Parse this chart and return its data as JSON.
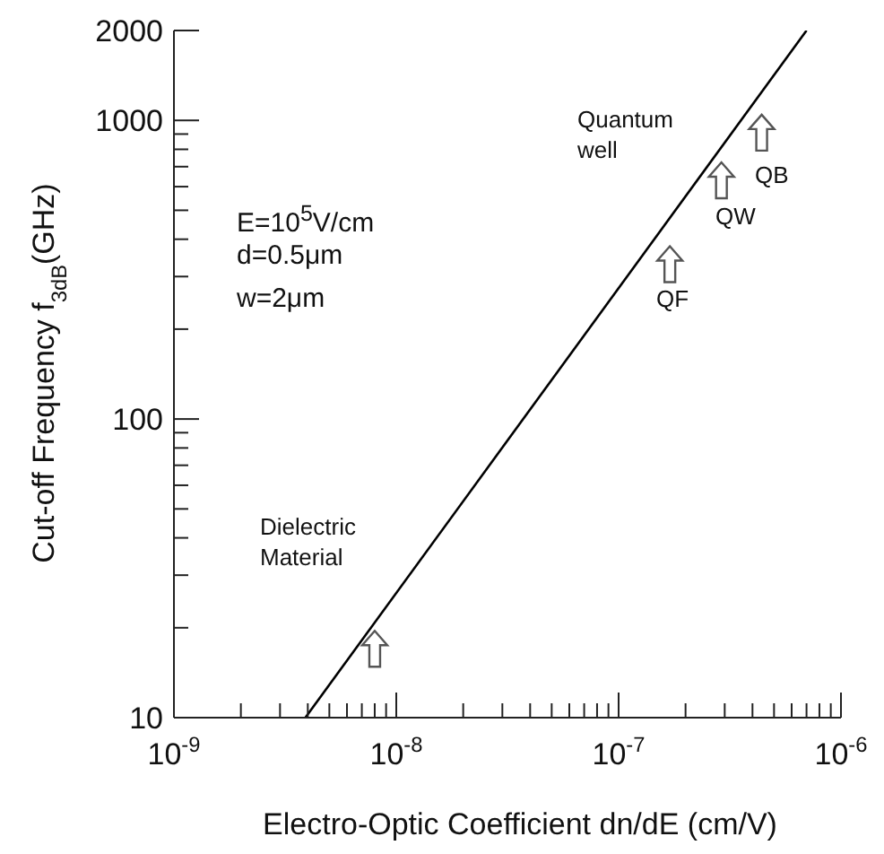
{
  "chart_data": {
    "type": "line",
    "xlabel": "Electro-Optic Coefficient   dn/dE (cm/V)",
    "ylabel": "Cut-off Frequency  f$_{3dB}$(GHz)",
    "log": "xy",
    "grid": false,
    "legend": false,
    "xlim": [
      1e-09,
      1e-06
    ],
    "xticks": [
      {
        "value": 1e-09,
        "label": "10$^{-9}$"
      },
      {
        "value": 2e-09,
        "label": null
      },
      {
        "value": 3e-09,
        "label": null
      },
      {
        "value": 4e-09,
        "label": null
      },
      {
        "value": 5e-09,
        "label": null
      },
      {
        "value": 6e-09,
        "label": null
      },
      {
        "value": 7e-09,
        "label": null
      },
      {
        "value": 8e-09,
        "label": null
      },
      {
        "value": 9e-09,
        "label": null
      },
      {
        "value": 1e-08,
        "label": "10$^{-8}$"
      },
      {
        "value": 2e-08,
        "label": null
      },
      {
        "value": 3e-08,
        "label": null
      },
      {
        "value": 4e-08,
        "label": null
      },
      {
        "value": 5e-08,
        "label": null
      },
      {
        "value": 6e-08,
        "label": null
      },
      {
        "value": 7e-08,
        "label": null
      },
      {
        "value": 8e-08,
        "label": null
      },
      {
        "value": 9e-08,
        "label": null
      },
      {
        "value": 1e-07,
        "label": "10$^{-7}$"
      },
      {
        "value": 2e-07,
        "label": null
      },
      {
        "value": 3e-07,
        "label": null
      },
      {
        "value": 4e-07,
        "label": null
      },
      {
        "value": 5e-07,
        "label": null
      },
      {
        "value": 6e-07,
        "label": null
      },
      {
        "value": 7e-07,
        "label": null
      },
      {
        "value": 8e-07,
        "label": null
      },
      {
        "value": 9e-07,
        "label": null
      },
      {
        "value": 1e-06,
        "label": "10$^{-6}$"
      }
    ],
    "ylim": [
      10,
      2000
    ],
    "yticks": [
      10,
      {
        "value": 20,
        "label": null
      },
      {
        "value": 30,
        "label": null
      },
      {
        "value": 40,
        "label": null
      },
      {
        "value": 50,
        "label": null
      },
      {
        "value": 60,
        "label": null
      },
      {
        "value": 70,
        "label": null
      },
      {
        "value": 80,
        "label": null
      },
      {
        "value": 90,
        "label": null
      },
      100,
      {
        "value": 200,
        "label": null
      },
      {
        "value": 300,
        "label": null
      },
      {
        "value": 400,
        "label": null
      },
      {
        "value": 500,
        "label": null
      },
      {
        "value": 600,
        "label": null
      },
      {
        "value": 700,
        "label": null
      },
      {
        "value": 800,
        "label": null
      },
      {
        "value": 900,
        "label": null
      },
      1000,
      2000
    ],
    "series": [
      {
        "color": "#000000",
        "x": [
          3.9e-09,
          7e-07
        ],
        "values": [
          10,
          2000
        ]
      },
      {
        "type": "scatter",
        "color": "#555555",
        "x": [
          8e-09,
          1.7e-07,
          2.9e-07,
          4.4e-07
        ],
        "values": [
          17,
          330,
          630,
          910
        ]
      }
    ],
    "annotations": [
      "E=10$^{5}$V/cm",
      "d=0.5μm",
      "w=2μm",
      "Dielectric Material",
      "Quantum well",
      "QF",
      "QW",
      "QB"
    ]
  }
}
